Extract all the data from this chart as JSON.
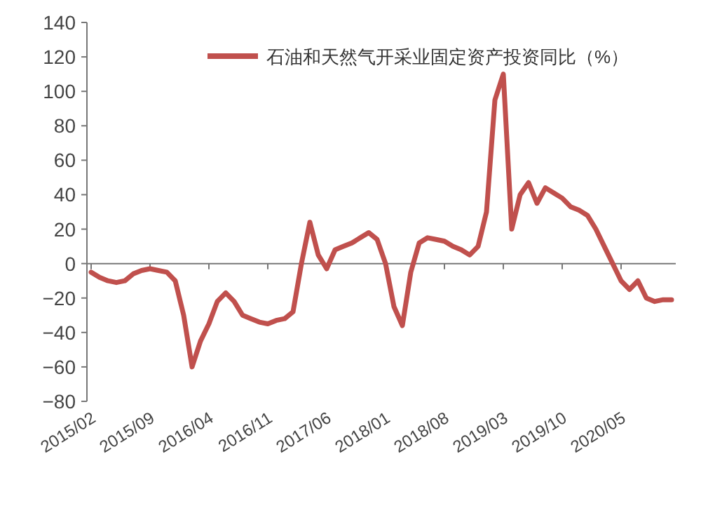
{
  "chart_data": {
    "type": "line",
    "categories": [
      "2015/02",
      null,
      null,
      null,
      null,
      null,
      null,
      "2015/09",
      null,
      null,
      null,
      null,
      null,
      null,
      "2016/04",
      null,
      null,
      null,
      null,
      null,
      null,
      "2016/11",
      null,
      null,
      null,
      null,
      null,
      null,
      "2017/06",
      null,
      null,
      null,
      null,
      null,
      null,
      "2018/01",
      null,
      null,
      null,
      null,
      null,
      null,
      "2018/08",
      null,
      null,
      null,
      null,
      null,
      null,
      "2019/03",
      null,
      null,
      null,
      null,
      null,
      null,
      "2019/10",
      null,
      null,
      null,
      null,
      null,
      null,
      "2020/05",
      null,
      null,
      null,
      null,
      null,
      null
    ],
    "series": [
      {
        "name": "石油和天然气开采业固定资产投资同比（%）",
        "color": "#c0504d",
        "values": [
          -5,
          -8,
          -10,
          -11,
          -10,
          -6,
          -4,
          -3,
          -4,
          -5,
          -10,
          -30,
          -60,
          -45,
          -35,
          -22,
          -17,
          -22,
          -30,
          -32,
          -34,
          -35,
          -33,
          -32,
          -28,
          0,
          24,
          5,
          -3,
          8,
          10,
          12,
          15,
          18,
          14,
          0,
          -25,
          -36,
          -5,
          12,
          15,
          14,
          13,
          10,
          8,
          5,
          10,
          30,
          95,
          110,
          20,
          40,
          47,
          35,
          44,
          41,
          38,
          33,
          31,
          28,
          20,
          10,
          0,
          -10,
          -15,
          -10,
          -20,
          -22,
          -21,
          -21
        ]
      }
    ],
    "ylim": [
      -80,
      140
    ],
    "yticks": [
      -80,
      -60,
      -40,
      -20,
      0,
      20,
      40,
      60,
      80,
      100,
      120,
      140
    ],
    "legend": "top",
    "line_style": "solid",
    "marker": "none"
  }
}
